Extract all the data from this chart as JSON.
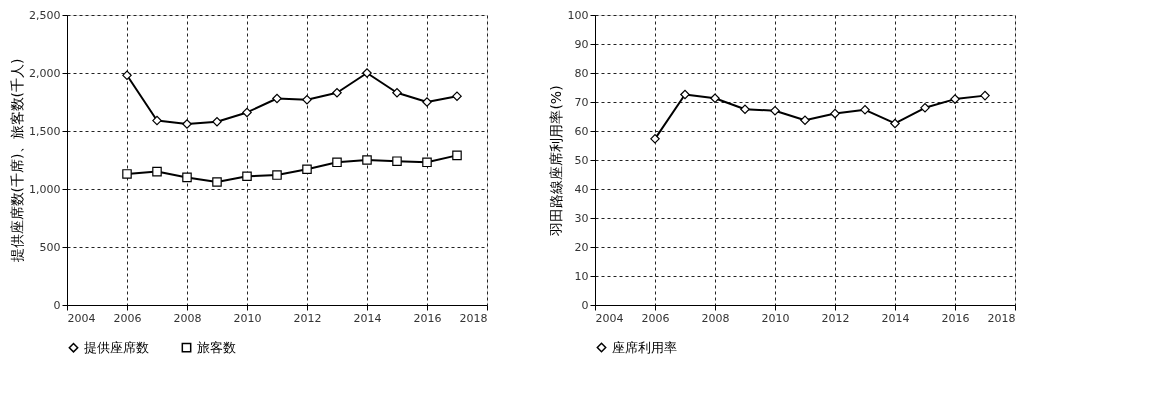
{
  "chart_data": [
    {
      "type": "line",
      "xlabel": null,
      "ylabel": "提供座席数(千席)、旅客数(千人)",
      "x": [
        2006,
        2007,
        2008,
        2009,
        2010,
        2011,
        2012,
        2013,
        2014,
        2015,
        2016,
        2017
      ],
      "xlim": [
        2004,
        2018
      ],
      "xticks": [
        2004,
        2006,
        2008,
        2010,
        2012,
        2014,
        2016,
        2018
      ],
      "ylim": [
        0,
        2500
      ],
      "yticks": [
        0,
        500,
        {
          "value": 1000,
          "label": "1,000"
        },
        {
          "value": 1500,
          "label": "1,500"
        },
        {
          "value": 2000,
          "label": "2,000"
        },
        {
          "value": 2500,
          "label": "2,500"
        }
      ],
      "grid": true,
      "legend": "bottom",
      "line_style": "solid",
      "series": [
        {
          "name": "提供座席数",
          "color": "#000000",
          "marker": "diamond",
          "values": [
            1980,
            1590,
            1560,
            1580,
            1660,
            1780,
            1770,
            1830,
            2000,
            1830,
            1750,
            1800
          ]
        },
        {
          "name": "旅客数",
          "color": "#000000",
          "marker": "square",
          "values": [
            1130,
            1150,
            1100,
            1060,
            1110,
            1120,
            1170,
            1230,
            1250,
            1240,
            1230,
            1290
          ]
        }
      ]
    },
    {
      "type": "line",
      "ylabel": "羽田路線座席利用率(%)",
      "x": [
        2006,
        2007,
        2008,
        2009,
        2010,
        2011,
        2012,
        2013,
        2014,
        2015,
        2016,
        2017
      ],
      "xlim": [
        2004,
        2018
      ],
      "xticks": [
        2004,
        2006,
        2008,
        2010,
        2012,
        2014,
        2016,
        2018
      ],
      "ylim": [
        0,
        100
      ],
      "yticks": [
        0,
        10,
        20,
        30,
        40,
        50,
        60,
        70,
        80,
        90,
        100
      ],
      "grid": true,
      "legend": "bottom",
      "line_style": "solid",
      "series": [
        {
          "name": "座席利用率",
          "color": "#000000",
          "marker": "diamond",
          "values": [
            57.3,
            72.6,
            71.3,
            67.5,
            67,
            63.7,
            66,
            67.3,
            62.6,
            68,
            71,
            72.2
          ]
        }
      ]
    }
  ]
}
